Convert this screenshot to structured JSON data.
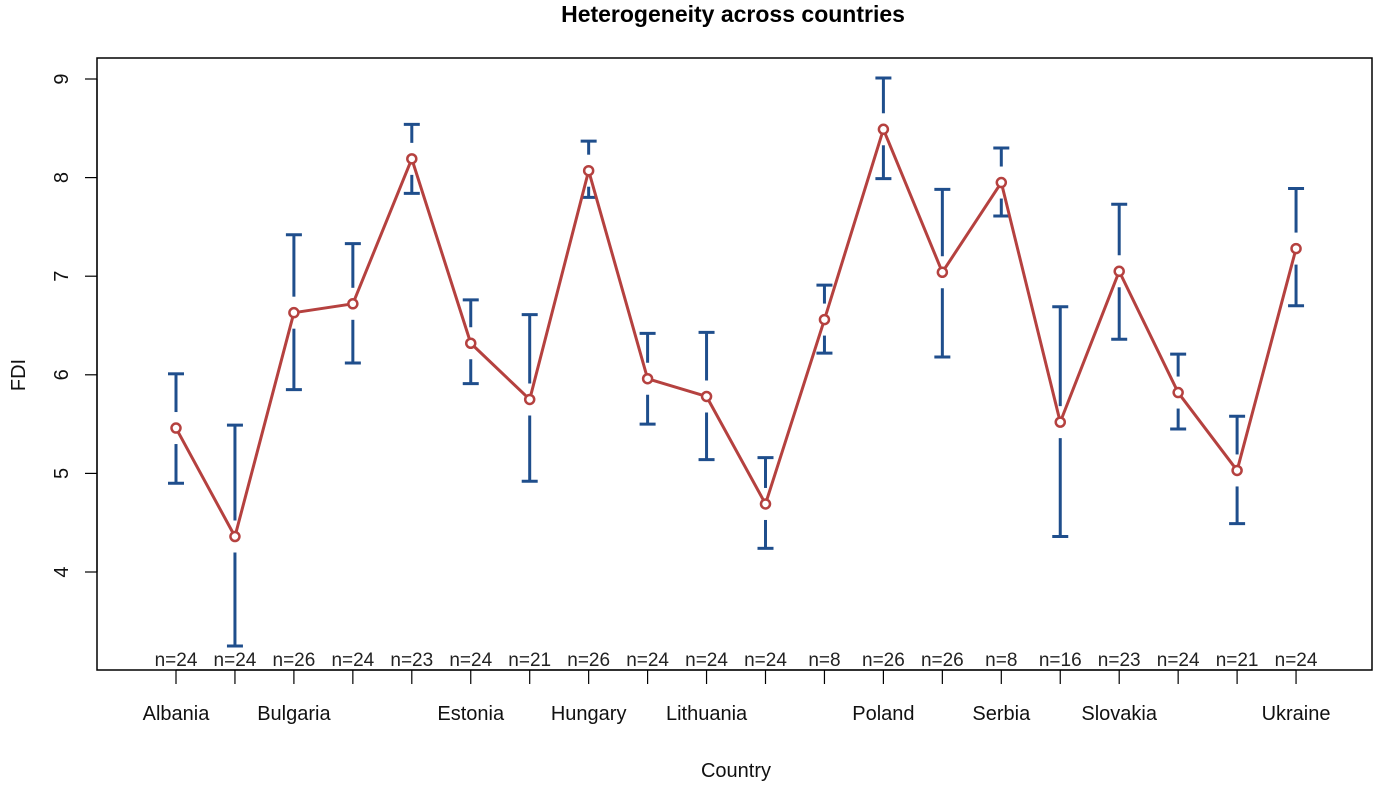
{
  "colors": {
    "line": "#b5413f",
    "errorbar": "#1f4e8c",
    "frame": "#000000"
  },
  "chart_data": {
    "type": "line",
    "title": "Heterogeneity across countries",
    "xlabel": "Country",
    "ylabel": "FDI",
    "ylim": [
      3.0,
      9.5
    ],
    "yticks": [
      4,
      5,
      6,
      7,
      8,
      9
    ],
    "grid": false,
    "categories": [
      "Albania",
      "",
      "Bulgaria",
      "",
      "",
      "Estonia",
      "",
      "Hungary",
      "",
      "Lithuania",
      "",
      "",
      "Poland",
      "",
      "Serbia",
      "",
      "Slovakia",
      "",
      "",
      "Ukraine"
    ],
    "series": [
      {
        "values": [
          5.46,
          4.36,
          6.63,
          6.72,
          8.19,
          6.32,
          5.75,
          8.07,
          5.96,
          5.78,
          4.69,
          6.56,
          8.49,
          7.04,
          7.95,
          5.52,
          7.05,
          5.82,
          5.03,
          7.28
        ],
        "lower": [
          4.9,
          3.25,
          5.85,
          6.12,
          7.84,
          5.91,
          4.92,
          7.8,
          5.5,
          5.14,
          4.24,
          6.22,
          7.99,
          6.18,
          7.61,
          4.36,
          6.36,
          5.45,
          4.49,
          6.7
        ],
        "upper": [
          6.01,
          5.49,
          7.42,
          7.33,
          8.54,
          6.76,
          6.61,
          8.37,
          6.42,
          6.43,
          5.16,
          6.91,
          9.01,
          7.88,
          8.3,
          6.69,
          7.73,
          6.21,
          5.58,
          7.89
        ]
      }
    ],
    "n_labels": [
      "n=24",
      "n=24",
      "n=26",
      "n=24",
      "n=23",
      "n=24",
      "n=21",
      "n=26",
      "n=24",
      "n=24",
      "n=24",
      "n=8",
      "n=26",
      "n=26",
      "n=8",
      "n=16",
      "n=23",
      "n=24",
      "n=21",
      "n=24"
    ]
  }
}
